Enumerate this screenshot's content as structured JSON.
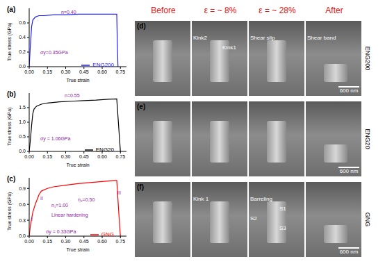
{
  "chart_data": [
    {
      "type": "line",
      "title": "(a)",
      "x_label": "True strain",
      "y_label": "True stress (GPa)",
      "x": [
        0,
        0.01,
        0.02,
        0.03,
        0.05,
        0.08,
        0.12,
        0.2,
        0.3,
        0.4,
        0.5,
        0.6,
        0.7,
        0.72,
        0.725,
        0.73
      ],
      "series": [
        {
          "name": "ENG200",
          "color": "#1f1fff",
          "values": [
            0,
            0.3,
            0.55,
            0.64,
            0.68,
            0.7,
            0.7,
            0.71,
            0.71,
            0.72,
            0.72,
            0.72,
            0.72,
            0.72,
            0.3,
            0
          ]
        }
      ],
      "xlim": [
        0,
        0.8
      ],
      "xticks": [
        {
          "value": 0,
          "label": "0.00"
        },
        {
          "value": 0.15,
          "label": "0.15"
        },
        {
          "value": 0.3,
          "label": "0.30"
        },
        {
          "value": 0.45,
          "label": "0.45"
        },
        {
          "value": 0.6,
          "label": "0.60"
        },
        {
          "value": 0.75,
          "label": "0.75"
        }
      ],
      "ylim": [
        0,
        0.8
      ],
      "yticks": [
        {
          "value": 0,
          "label": "0.0"
        },
        0.2,
        0.4,
        0.6
      ],
      "legend": "lower right",
      "annotations": [
        "n=0.40",
        "σy=0.35GPa"
      ]
    },
    {
      "type": "line",
      "title": "(b)",
      "x_label": "True strain",
      "y_label": "True stress (GPa)",
      "x": [
        0,
        0.01,
        0.02,
        0.03,
        0.04,
        0.06,
        0.1,
        0.15,
        0.25,
        0.35,
        0.45,
        0.55,
        0.65,
        0.72,
        0.735,
        0.75
      ],
      "series": [
        {
          "name": "ENG20",
          "color": "#000000",
          "values": [
            0,
            0.4,
            0.9,
            1.3,
            1.45,
            1.55,
            1.62,
            1.66,
            1.7,
            1.72,
            1.74,
            1.76,
            1.79,
            1.8,
            0.9,
            0
          ]
        }
      ],
      "xlim": [
        0,
        0.8
      ],
      "xticks": [
        {
          "value": 0,
          "label": "0.00"
        },
        {
          "value": 0.15,
          "label": "0.15"
        },
        {
          "value": 0.3,
          "label": "0.30"
        },
        {
          "value": 0.45,
          "label": "0.45"
        },
        {
          "value": 0.6,
          "label": "0.60"
        },
        {
          "value": 0.75,
          "label": "0.75"
        }
      ],
      "ylim": [
        0,
        2
      ],
      "yticks": [
        {
          "value": 0,
          "label": "0.0"
        },
        0.5,
        {
          "value": 1,
          "label": "1.0"
        },
        1.5
      ],
      "legend": "lower right",
      "annotations": [
        "n=0.55",
        "σy = 1.06GPa"
      ]
    },
    {
      "type": "line",
      "title": "(c)",
      "x_label": "True strain",
      "y_label": "True stress (GPa)",
      "x": [
        0,
        0.01,
        0.02,
        0.03,
        0.05,
        0.08,
        0.1,
        0.15,
        0.2,
        0.3,
        0.4,
        0.5,
        0.6,
        0.7,
        0.72,
        0.735,
        0.75
      ],
      "series": [
        {
          "name": "GNG",
          "color": "#ff0000",
          "values": [
            0,
            0.2,
            0.33,
            0.45,
            0.6,
            0.78,
            0.85,
            0.9,
            0.93,
            0.96,
            0.99,
            1.01,
            1.03,
            1.05,
            1.05,
            0.5,
            0
          ]
        }
      ],
      "xlim": [
        0,
        0.8
      ],
      "xticks": [
        {
          "value": 0,
          "label": "0.00"
        },
        {
          "value": 0.15,
          "label": "0.15"
        },
        {
          "value": 0.3,
          "label": "0.30"
        },
        {
          "value": 0.45,
          "label": "0.45"
        },
        {
          "value": 0.6,
          "label": "0.60"
        },
        {
          "value": 0.75,
          "label": "0.75"
        }
      ],
      "ylim": [
        0,
        1.1
      ],
      "yticks": [
        {
          "value": 0,
          "label": "0.0"
        },
        0.3,
        0.6,
        0.9
      ],
      "legend": "lower right",
      "annotations": [
        "I",
        "II",
        "III",
        "n₁=1.00",
        "n₂=0.50",
        "Linear hardening",
        "σy = 0.33GPa"
      ]
    }
  ],
  "micrographs": {
    "columns": [
      "Before",
      "ε = ~ 8%",
      "ε = ~ 28%",
      "After"
    ],
    "rows": [
      {
        "panel": "(d)",
        "name": "ENG200",
        "scale_bar": "600 nm",
        "annotations": [
          [],
          [
            "Kink2",
            "Kink1"
          ],
          [
            "Shear slip"
          ],
          [
            "Shear band"
          ]
        ]
      },
      {
        "panel": "(e)",
        "name": "ENG20",
        "scale_bar": "600 nm",
        "annotations": [
          [],
          [],
          [],
          []
        ]
      },
      {
        "panel": "(f)",
        "name": "GNG",
        "scale_bar": "600 nm",
        "annotations": [
          [],
          [
            "Kink 1"
          ],
          [
            "Barreling",
            "S1",
            "S2",
            "S3"
          ],
          []
        ]
      }
    ]
  }
}
